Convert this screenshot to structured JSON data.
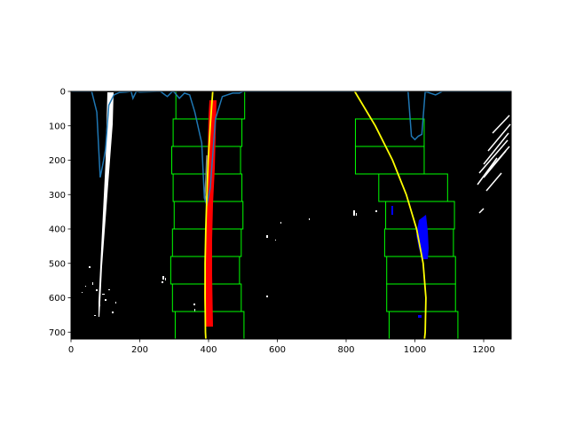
{
  "chart_data": {
    "type": "image",
    "title": "",
    "xlabel": "",
    "ylabel": "",
    "xlim": [
      0,
      1280
    ],
    "ylim": [
      720,
      0
    ],
    "xticks": [
      0,
      200,
      400,
      600,
      800,
      1000,
      1200
    ],
    "yticks": [
      0,
      100,
      200,
      300,
      400,
      500,
      600,
      700
    ],
    "grid": false,
    "legend": "none",
    "colors": {
      "background": "#000000",
      "window_boxes": "#00ff00",
      "left_lane_pixels": "#ff0000",
      "right_lane_pixels": "#0000ff",
      "fit_curves": "#ffff00",
      "histogram": "#1f77b4",
      "other_pixels": "#ffffff"
    },
    "left_windows": [
      {
        "y_top": 0,
        "y_bottom": 80,
        "x_left": 305,
        "x_right": 505
      },
      {
        "y_top": 80,
        "y_bottom": 160,
        "x_left": 297,
        "x_right": 497
      },
      {
        "y_top": 160,
        "y_bottom": 240,
        "x_left": 293,
        "x_right": 493
      },
      {
        "y_top": 240,
        "y_bottom": 320,
        "x_left": 297,
        "x_right": 497
      },
      {
        "y_top": 320,
        "y_bottom": 400,
        "x_left": 300,
        "x_right": 500
      },
      {
        "y_top": 400,
        "y_bottom": 480,
        "x_left": 295,
        "x_right": 495
      },
      {
        "y_top": 480,
        "y_bottom": 560,
        "x_left": 290,
        "x_right": 490
      },
      {
        "y_top": 560,
        "y_bottom": 640,
        "x_left": 295,
        "x_right": 495
      },
      {
        "y_top": 640,
        "y_bottom": 720,
        "x_left": 303,
        "x_right": 503
      }
    ],
    "right_windows": [
      {
        "y_top": 80,
        "y_bottom": 160,
        "x_left": 827,
        "x_right": 1027
      },
      {
        "y_top": 160,
        "y_bottom": 240,
        "x_left": 827,
        "x_right": 1027
      },
      {
        "y_top": 240,
        "y_bottom": 320,
        "x_left": 895,
        "x_right": 1095
      },
      {
        "y_top": 320,
        "y_bottom": 400,
        "x_left": 915,
        "x_right": 1115
      },
      {
        "y_top": 400,
        "y_bottom": 480,
        "x_left": 912,
        "x_right": 1112
      },
      {
        "y_top": 480,
        "y_bottom": 560,
        "x_left": 918,
        "x_right": 1118
      },
      {
        "y_top": 560,
        "y_bottom": 640,
        "x_left": 918,
        "x_right": 1118
      },
      {
        "y_top": 640,
        "y_bottom": 720,
        "x_left": 925,
        "x_right": 1125
      }
    ],
    "left_fit": {
      "y": [
        0,
        100,
        200,
        300,
        400,
        500,
        600,
        700,
        720
      ],
      "x": [
        412,
        405,
        399,
        395,
        392,
        390,
        390,
        391,
        392
      ]
    },
    "right_fit": {
      "y": [
        0,
        100,
        200,
        300,
        400,
        500,
        600,
        700,
        720
      ],
      "x": [
        825,
        885,
        935,
        975,
        1005,
        1024,
        1032,
        1030,
        1028
      ]
    },
    "histogram": {
      "x": [
        0,
        60,
        75,
        85,
        95,
        100,
        110,
        125,
        140,
        160,
        175,
        180,
        190,
        200,
        260,
        280,
        295,
        300,
        315,
        330,
        345,
        360,
        380,
        388,
        395,
        405,
        420,
        440,
        470,
        480,
        490,
        500,
        600,
        800,
        950,
        980,
        990,
        1000,
        1010,
        1020,
        1030,
        1060,
        1080,
        1280
      ],
      "y": [
        0,
        0,
        60,
        250,
        200,
        170,
        40,
        10,
        3,
        2,
        0,
        20,
        0,
        2,
        0,
        15,
        0,
        2,
        20,
        5,
        10,
        60,
        150,
        310,
        330,
        280,
        80,
        15,
        5,
        5,
        5,
        0,
        0,
        0,
        0,
        0,
        130,
        140,
        130,
        125,
        0,
        10,
        0,
        0
      ]
    }
  }
}
